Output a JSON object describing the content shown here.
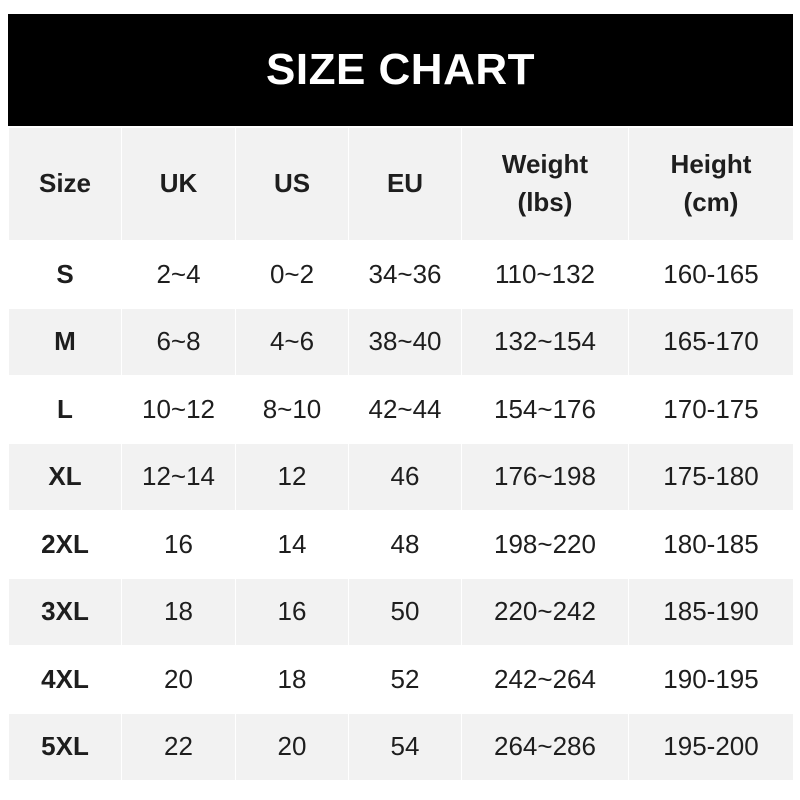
{
  "title": "SIZE CHART",
  "headers": [
    "Size",
    "UK",
    "US",
    "EU",
    "Weight\n(lbs)",
    "Height\n(cm)"
  ],
  "header_lines": [
    [
      "Size"
    ],
    [
      "UK"
    ],
    [
      "US"
    ],
    [
      "EU"
    ],
    [
      "Weight",
      "(lbs)"
    ],
    [
      "Height",
      "(cm)"
    ]
  ],
  "rows": [
    [
      "S",
      "2~4",
      "0~2",
      "34~36",
      "110~132",
      "160-165"
    ],
    [
      "M",
      "6~8",
      "4~6",
      "38~40",
      "132~154",
      "165-170"
    ],
    [
      "L",
      "10~12",
      "8~10",
      "42~44",
      "154~176",
      "170-175"
    ],
    [
      "XL",
      "12~14",
      "12",
      "46",
      "176~198",
      "175-180"
    ],
    [
      "2XL",
      "16",
      "14",
      "48",
      "198~220",
      "180-185"
    ],
    [
      "3XL",
      "18",
      "16",
      "50",
      "220~242",
      "185-190"
    ],
    [
      "4XL",
      "20",
      "18",
      "52",
      "242~264",
      "190-195"
    ],
    [
      "5XL",
      "22",
      "20",
      "54",
      "264~286",
      "195-200"
    ]
  ],
  "colors": {
    "header_bg": "#000000",
    "title_text": "#ffffff",
    "band_bg": "#f2f2f2",
    "text": "#1e1e1e"
  }
}
